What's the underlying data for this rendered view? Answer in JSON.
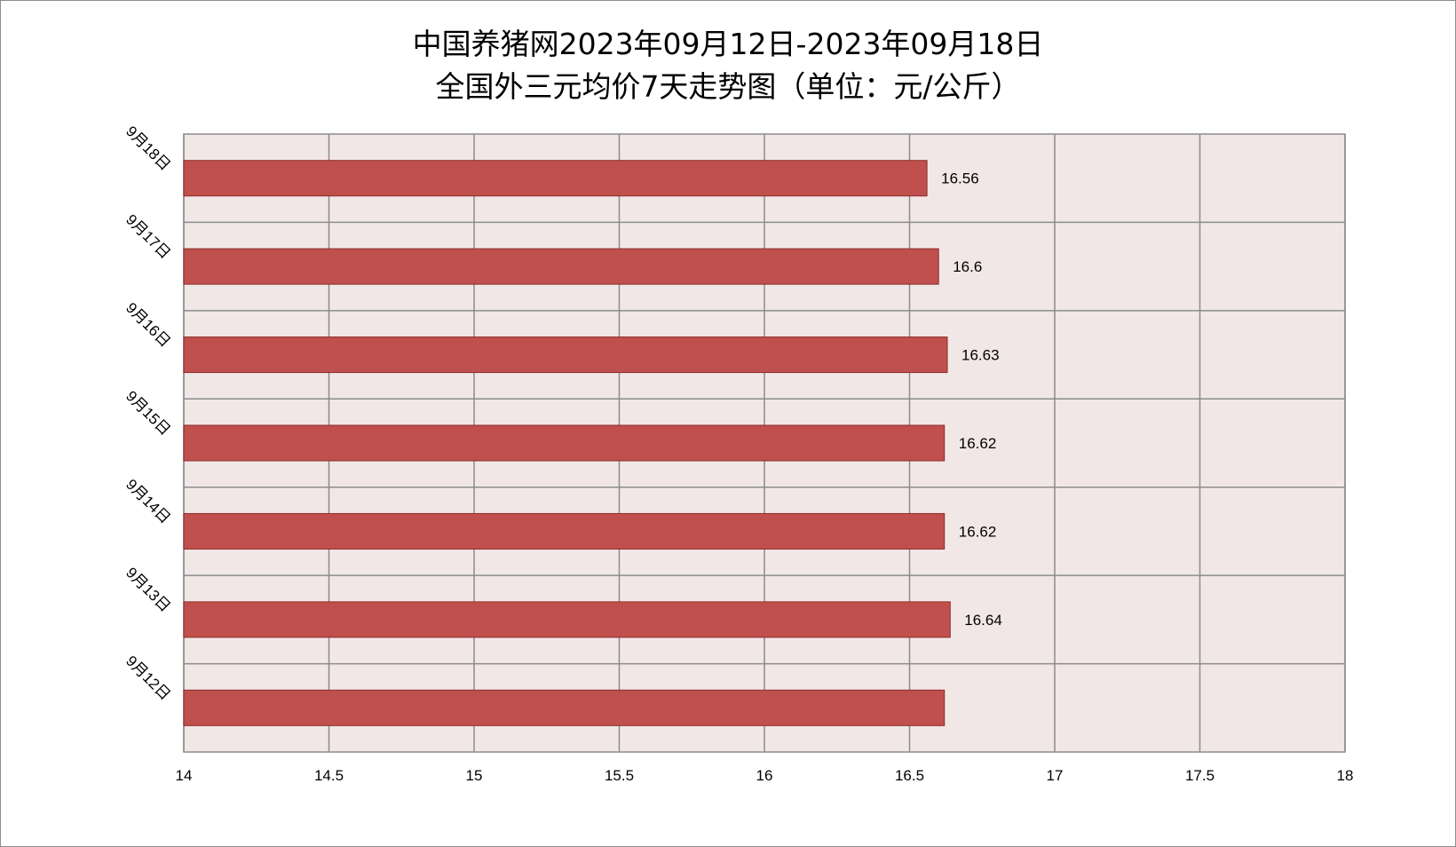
{
  "chart_data": {
    "type": "bar",
    "orientation": "horizontal",
    "title": "中国养猪网2023年09月12日-2023年09月18日",
    "subtitle": "全国外三元均价7天走势图（单位：元/公斤）",
    "categories": [
      "9月18日",
      "9月17日",
      "9月16日",
      "9月15日",
      "9月14日",
      "9月13日",
      "9月12日"
    ],
    "values": [
      16.56,
      16.6,
      16.63,
      16.62,
      16.62,
      16.64,
      16.62
    ],
    "data_labels": [
      "16.56",
      "16.6",
      "16.63",
      "16.62",
      "16.62",
      "16.64",
      ""
    ],
    "xlim": [
      14,
      18
    ],
    "xticks": [
      "14",
      "14.5",
      "15",
      "15.5",
      "16",
      "16.5",
      "17",
      "17.5",
      "18"
    ],
    "grid": true,
    "colors": {
      "bar": "#c0504d",
      "bar_border": "#8c2d2a",
      "plot_background": "#f2e7e7",
      "grid": "#8c8c8c"
    }
  }
}
